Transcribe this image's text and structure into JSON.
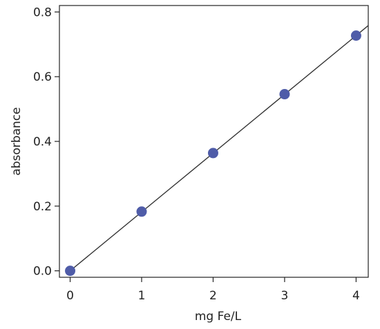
{
  "chart_data": {
    "type": "scatter",
    "xlabel": "mg Fe/L",
    "ylabel": "absorbance",
    "xlim": [
      -0.15,
      4.17
    ],
    "ylim": [
      -0.02,
      0.82
    ],
    "xticks": [
      "0",
      "1",
      "2",
      "3",
      "4"
    ],
    "yticks": [
      "0.0",
      "0.2",
      "0.4",
      "0.6",
      "0.8"
    ],
    "grid": false,
    "series": [
      {
        "x": [
          0,
          1,
          2,
          3,
          4
        ],
        "y": [
          0.0,
          0.183,
          0.364,
          0.546,
          0.727
        ]
      }
    ],
    "fit_line": {
      "x": [
        0,
        4.17
      ],
      "y": [
        0.0,
        0.758
      ]
    },
    "colors": {
      "points": "#4f5ca8",
      "line": "#333333",
      "axis": "#222222"
    }
  }
}
